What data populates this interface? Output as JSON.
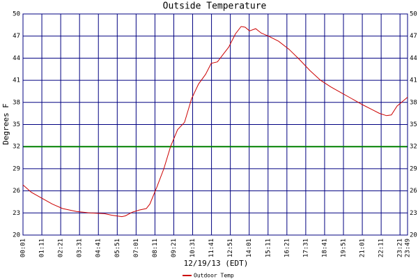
{
  "chart_data": {
    "type": "line",
    "title": "Outside Temperature",
    "xlabel": "12/19/13 (EDT)",
    "ylabel": "Degrees F",
    "x": [
      1,
      32,
      71,
      110,
      148,
      200,
      252,
      304,
      330,
      368,
      381,
      407,
      433,
      459,
      472,
      498,
      524,
      549,
      575,
      601,
      627,
      653,
      679,
      700,
      723,
      744,
      765,
      790,
      811,
      826,
      842,
      865,
      886,
      912,
      950,
      989,
      1028,
      1067,
      1106,
      1144,
      1183,
      1222,
      1261,
      1299,
      1325,
      1351,
      1369,
      1390,
      1429
    ],
    "series": [
      {
        "name": "Outdoor Temp",
        "color": "#cc0000",
        "values": [
          26.8,
          25.8,
          25.0,
          24.2,
          23.6,
          23.2,
          23.0,
          22.9,
          22.7,
          22.5,
          22.6,
          23.1,
          23.4,
          23.6,
          24.2,
          26.5,
          29.0,
          32.0,
          34.3,
          35.3,
          38.5,
          40.5,
          41.8,
          43.3,
          43.5,
          44.5,
          45.5,
          47.3,
          48.3,
          48.2,
          47.7,
          48.0,
          47.4,
          47.0,
          46.3,
          45.2,
          43.8,
          42.3,
          41.0,
          40.1,
          39.3,
          38.5,
          37.7,
          37.0,
          36.5,
          36.2,
          36.3,
          37.5,
          38.7
        ]
      }
    ],
    "xlim": [
      1,
      1429
    ],
    "xticks": [
      {
        "value": 1,
        "label": "00:01"
      },
      {
        "value": 71,
        "label": "01:11"
      },
      {
        "value": 141,
        "label": "02:21"
      },
      {
        "value": 211,
        "label": "03:31"
      },
      {
        "value": 281,
        "label": "04:41"
      },
      {
        "value": 351,
        "label": "05:51"
      },
      {
        "value": 421,
        "label": "07:01"
      },
      {
        "value": 491,
        "label": "08:11"
      },
      {
        "value": 561,
        "label": "09:21"
      },
      {
        "value": 631,
        "label": "10:31"
      },
      {
        "value": 701,
        "label": "11:41"
      },
      {
        "value": 771,
        "label": "12:51"
      },
      {
        "value": 841,
        "label": "14:01"
      },
      {
        "value": 911,
        "label": "15:11"
      },
      {
        "value": 981,
        "label": "16:21"
      },
      {
        "value": 1051,
        "label": "17:31"
      },
      {
        "value": 1121,
        "label": "18:41"
      },
      {
        "value": 1191,
        "label": "19:51"
      },
      {
        "value": 1261,
        "label": "21:01"
      },
      {
        "value": 1331,
        "label": "22:11"
      },
      {
        "value": 1401,
        "label": "23:21"
      },
      {
        "value": 1429,
        "label": "23:49"
      }
    ],
    "ylim": [
      20,
      50
    ],
    "yticks": [
      20,
      23,
      26,
      29,
      32,
      35,
      38,
      41,
      44,
      47,
      50
    ],
    "grid": true,
    "grid_color": "#000080",
    "reference_line": {
      "value": 32,
      "color": "#008000"
    }
  }
}
